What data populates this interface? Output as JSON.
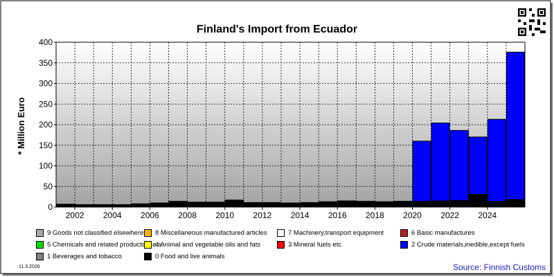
{
  "chart_data": {
    "type": "bar",
    "stacked": true,
    "title": "Finland's Import from Ecuador",
    "ylabel": "* Million Euro",
    "xlabel": "",
    "ylim": [
      0,
      400
    ],
    "yticks": [
      0,
      50,
      100,
      150,
      200,
      250,
      300,
      350,
      400
    ],
    "grid": true,
    "categories": [
      "2001",
      "2002",
      "2003",
      "2004",
      "2005",
      "2006",
      "2007",
      "2008",
      "2009",
      "2010",
      "2011",
      "2012",
      "2013",
      "2014",
      "2015",
      "2016",
      "2017",
      "2018",
      "2019",
      "2020",
      "2021",
      "2022",
      "2023",
      "2024",
      "2025"
    ],
    "xtick_labels": [
      "2002",
      "2004",
      "2006",
      "2008",
      "2010",
      "2012",
      "2014",
      "2016",
      "2018",
      "2020",
      "2022",
      "2024"
    ],
    "series": [
      {
        "name": "0 Food and live animals",
        "color": "#000000",
        "values": [
          7,
          6,
          6,
          6,
          8,
          10,
          14,
          12,
          12,
          17,
          11,
          11,
          10,
          11,
          13,
          15,
          14,
          13,
          14,
          14,
          15,
          16,
          31,
          14,
          18
        ]
      },
      {
        "name": "2 Crude materials,inedible,except fuels",
        "color": "#0000ff",
        "values": [
          0,
          0,
          0,
          0,
          0,
          0,
          0,
          0,
          0,
          0,
          0,
          0,
          0,
          0,
          0,
          0,
          0,
          0,
          0,
          146,
          189,
          170,
          139,
          199,
          358
        ]
      },
      {
        "name": "6 Basic manufactures",
        "color": "#b22222",
        "values": [
          0,
          0,
          0,
          0,
          0,
          0,
          0,
          0,
          0,
          0,
          0,
          0,
          0,
          0,
          0,
          0,
          0,
          0,
          0,
          0,
          0,
          0,
          0,
          0,
          0
        ]
      },
      {
        "name": "9 Goods not classified elsewhere",
        "color": "#a9a9a9",
        "values": [
          0,
          0,
          0,
          0,
          0,
          0,
          0,
          0,
          0,
          0,
          0,
          0,
          0,
          0,
          0,
          0,
          0,
          0,
          0,
          0,
          0,
          0,
          0,
          0,
          0
        ]
      },
      {
        "name": "8 Miscellaneous manufactured articles",
        "color": "#ffb400",
        "values": [
          0,
          0,
          0,
          0,
          0,
          0,
          0,
          0,
          0,
          0,
          0,
          0,
          0,
          0,
          0,
          0,
          0,
          0,
          0,
          0,
          0,
          0,
          0,
          0,
          0
        ]
      },
      {
        "name": "7 Machinery,transport equipment",
        "color": "#ffffff",
        "values": [
          0,
          0,
          0,
          0,
          0,
          0,
          0,
          0,
          0,
          0,
          0,
          0,
          0,
          0,
          0,
          0,
          0,
          0,
          0,
          0,
          0,
          0,
          0,
          0,
          0
        ]
      },
      {
        "name": "5 Chemicals and related products,n.e.s.",
        "color": "#00dd00",
        "values": [
          0,
          0,
          0,
          0,
          0,
          0,
          0,
          0,
          0,
          0,
          0,
          0,
          0,
          0,
          0,
          0,
          0,
          0,
          0,
          0,
          0,
          0,
          0,
          0,
          0
        ]
      },
      {
        "name": "4 Animal and vegetable oils and fats",
        "color": "#ffff00",
        "values": [
          0,
          0,
          0,
          0,
          0,
          0,
          0,
          0,
          0,
          0,
          0,
          0,
          0,
          0,
          0,
          0,
          0,
          0,
          0,
          0,
          0,
          0,
          0,
          0,
          0
        ]
      },
      {
        "name": "3 Mineral fuels etc",
        "color": "#ff0000",
        "values": [
          0,
          0,
          0,
          0,
          0,
          0,
          0,
          0,
          0,
          0,
          0,
          0,
          0,
          0,
          0,
          0,
          0,
          0,
          0,
          0,
          0,
          0,
          0,
          0,
          0
        ]
      },
      {
        "name": "1 Beverages and tobacco",
        "color": "#808080",
        "values": [
          0,
          0,
          0,
          0,
          0,
          0,
          0,
          0,
          0,
          0,
          0,
          0,
          0,
          0,
          0,
          0,
          0,
          0,
          0,
          0,
          0,
          0,
          0,
          0,
          0
        ]
      }
    ],
    "legend_rows": [
      [
        "9 Goods not classified elsewhere",
        "8 Miscellaneous manufactured articles",
        "7 Machinery,transport equipment",
        "6 Basic manufactures"
      ],
      [
        "5 Chemicals and related products,n.e.s.",
        "4 Animal and vegetable oils and fats",
        "3 Mineral fuels etc",
        "2 Crude materials,inedible,except fuels"
      ],
      [
        "1 Beverages and tobacco",
        "0 Food and live animals"
      ]
    ],
    "legend_placement": "bottom"
  },
  "footer": {
    "date": "11.3.2026",
    "source": "Source: Finnish Customs"
  },
  "icons": {
    "qr": "qr-code-icon"
  }
}
